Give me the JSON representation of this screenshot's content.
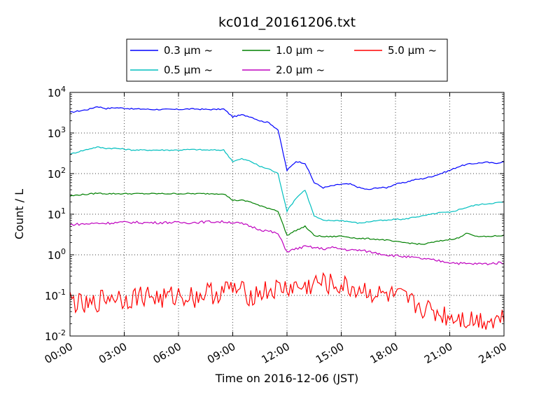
{
  "chart_data": {
    "type": "line",
    "title": "kc01d_20161206.txt",
    "xlabel": "Time on 2016-12-06 (JST)",
    "ylabel": "Count / L",
    "yscale": "log",
    "xlim": [
      "00:00",
      "24:00"
    ],
    "ylim": [
      0.01,
      10000
    ],
    "grid": true,
    "legend_position": "top",
    "x_ticks": [
      "00:00",
      "03:00",
      "06:00",
      "09:00",
      "12:00",
      "15:00",
      "18:00",
      "21:00",
      "24:00"
    ],
    "y_ticks": [
      {
        "value": 0.01,
        "base": "10",
        "exp": "-2"
      },
      {
        "value": 0.1,
        "base": "10",
        "exp": "-1"
      },
      {
        "value": 1,
        "base": "10",
        "exp": "0"
      },
      {
        "value": 10,
        "base": "10",
        "exp": "1"
      },
      {
        "value": 100,
        "base": "10",
        "exp": "2"
      },
      {
        "value": 1000,
        "base": "10",
        "exp": "3"
      },
      {
        "value": 10000,
        "base": "10",
        "exp": "4"
      }
    ],
    "x_hours": [
      0,
      0.5,
      1,
      1.5,
      2,
      2.5,
      3,
      3.5,
      4,
      4.5,
      5,
      5.5,
      6,
      6.5,
      7,
      7.5,
      8,
      8.5,
      9,
      9.5,
      10,
      10.5,
      11,
      11.5,
      12,
      12.5,
      13,
      13.5,
      14,
      14.5,
      15,
      15.5,
      16,
      16.5,
      17,
      17.5,
      18,
      18.5,
      19,
      19.5,
      20,
      20.5,
      21,
      21.5,
      22,
      22.5,
      23,
      23.5,
      24
    ],
    "series": [
      {
        "name": "0.3 μm ~",
        "color": "#0000ff",
        "values": [
          3200,
          3500,
          3800,
          4500,
          4000,
          4200,
          4100,
          3900,
          3900,
          3800,
          3800,
          3800,
          3800,
          3900,
          3900,
          3800,
          3800,
          3900,
          2500,
          2800,
          2500,
          2000,
          1800,
          1200,
          120,
          200,
          180,
          60,
          45,
          50,
          55,
          55,
          45,
          40,
          45,
          45,
          55,
          60,
          70,
          75,
          85,
          100,
          120,
          150,
          170,
          180,
          190,
          180,
          195
        ]
      },
      {
        "name": "0.5 μm ~",
        "color": "#00bfbf",
        "values": [
          300,
          350,
          400,
          450,
          420,
          420,
          400,
          380,
          380,
          380,
          380,
          380,
          380,
          390,
          390,
          380,
          380,
          380,
          200,
          230,
          200,
          150,
          130,
          100,
          12,
          25,
          40,
          9,
          7,
          7,
          7,
          6.5,
          6,
          6.5,
          7,
          7,
          7.5,
          7.5,
          8.5,
          9,
          10,
          11,
          11,
          13,
          15,
          17,
          18,
          19,
          20
        ]
      },
      {
        "name": "1.0 μm ~",
        "color": "#008000",
        "values": [
          28,
          30,
          31,
          33,
          32,
          32,
          32,
          32,
          32,
          32,
          32,
          32,
          32,
          32,
          32,
          32,
          32,
          32,
          22,
          22,
          20,
          16,
          14,
          12,
          3,
          4,
          5,
          3,
          2.8,
          2.8,
          2.9,
          2.7,
          2.5,
          2.5,
          2.4,
          2.3,
          2.1,
          2,
          1.9,
          1.8,
          2,
          2.2,
          2.4,
          2.6,
          3.5,
          2.8,
          2.8,
          2.9,
          3
        ]
      },
      {
        "name": "2.0 μm ~",
        "color": "#bf00bf",
        "values": [
          5.5,
          5.7,
          5.8,
          6,
          6,
          6.2,
          6.3,
          6.3,
          6.2,
          6.2,
          6.2,
          6.3,
          6.2,
          6.2,
          6.3,
          6.5,
          6.5,
          6.5,
          6.3,
          5.8,
          5,
          4.2,
          3.8,
          3.3,
          1.2,
          1.4,
          1.6,
          1.5,
          1.4,
          1.5,
          1.4,
          1.3,
          1.3,
          1.2,
          1.1,
          1,
          0.95,
          0.9,
          0.85,
          0.8,
          0.75,
          0.7,
          0.65,
          0.62,
          0.6,
          0.6,
          0.6,
          0.62,
          0.65
        ]
      },
      {
        "name": "5.0 μm ~",
        "color": "#ff0000",
        "values": [
          0.08,
          0.06,
          0.05,
          0.07,
          0.09,
          0.1,
          0.08,
          0.09,
          0.1,
          0.1,
          0.08,
          0.09,
          0.1,
          0.1,
          0.09,
          0.12,
          0.11,
          0.13,
          0.15,
          0.12,
          0.1,
          0.12,
          0.13,
          0.14,
          0.15,
          0.16,
          0.15,
          0.2,
          0.2,
          0.18,
          0.17,
          0.15,
          0.14,
          0.13,
          0.1,
          0.1,
          0.09,
          0.08,
          0.06,
          0.05,
          0.04,
          0.035,
          0.03,
          0.03,
          0.025,
          0.025,
          0.025,
          0.025,
          0.03
        ]
      }
    ]
  }
}
